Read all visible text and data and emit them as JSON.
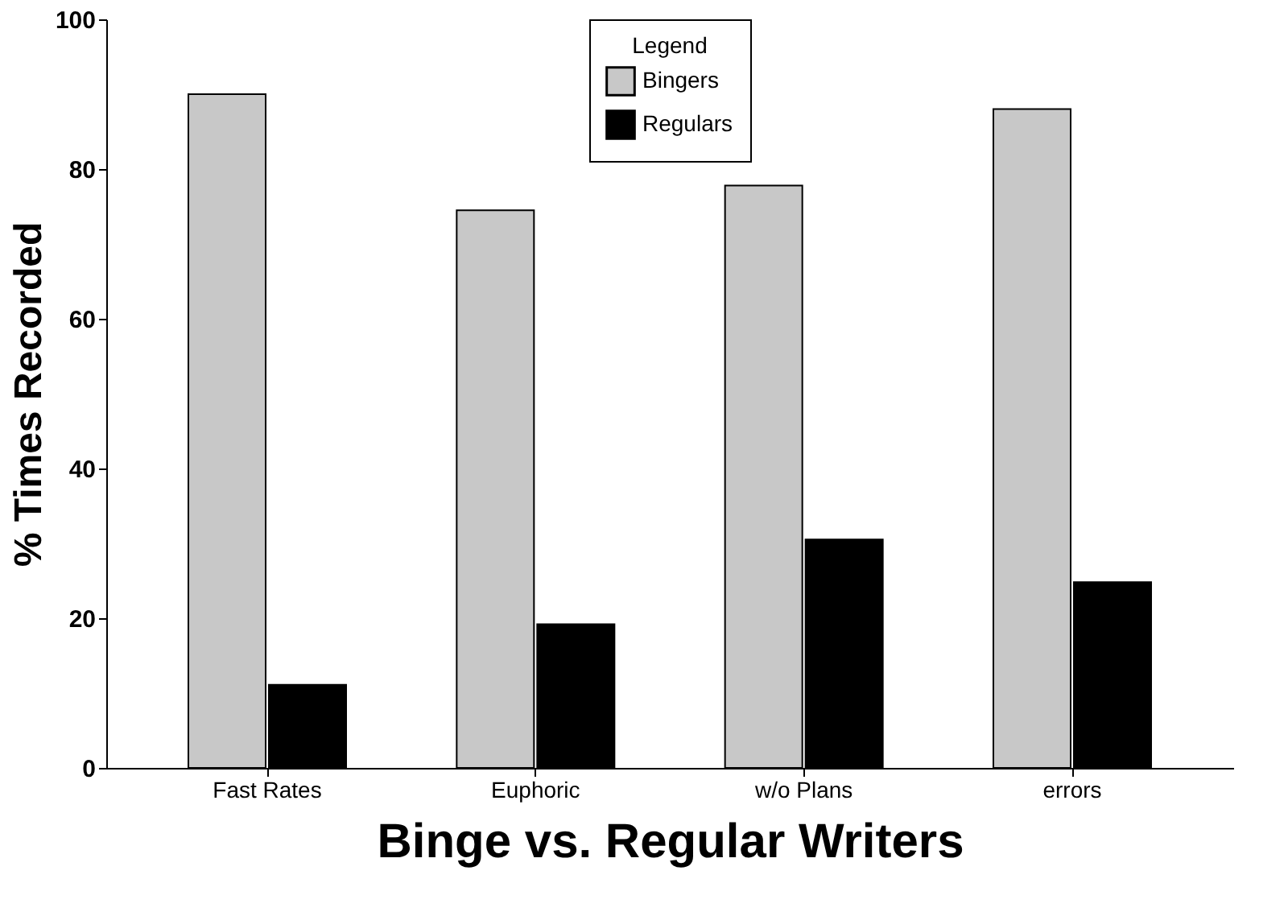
{
  "chart_data": {
    "type": "bar",
    "xlabel": "Binge vs. Regular Writers",
    "ylabel": "% Times Recorded",
    "legend_title": "Legend",
    "categories": [
      "Fast Rates",
      "Euphoric",
      "w/o Plans",
      "errors"
    ],
    "series": [
      {
        "name": "Bingers",
        "color": "#c8c8c8",
        "values": [
          90,
          74.5,
          77.8,
          88
        ]
      },
      {
        "name": "Regulars",
        "color": "#000000",
        "values": [
          11.1,
          19.2,
          30.5,
          24.8
        ]
      }
    ],
    "ylim": [
      0,
      100
    ],
    "yticks": [
      0,
      20,
      40,
      60,
      80,
      100
    ],
    "grid": false,
    "legend": "top"
  }
}
